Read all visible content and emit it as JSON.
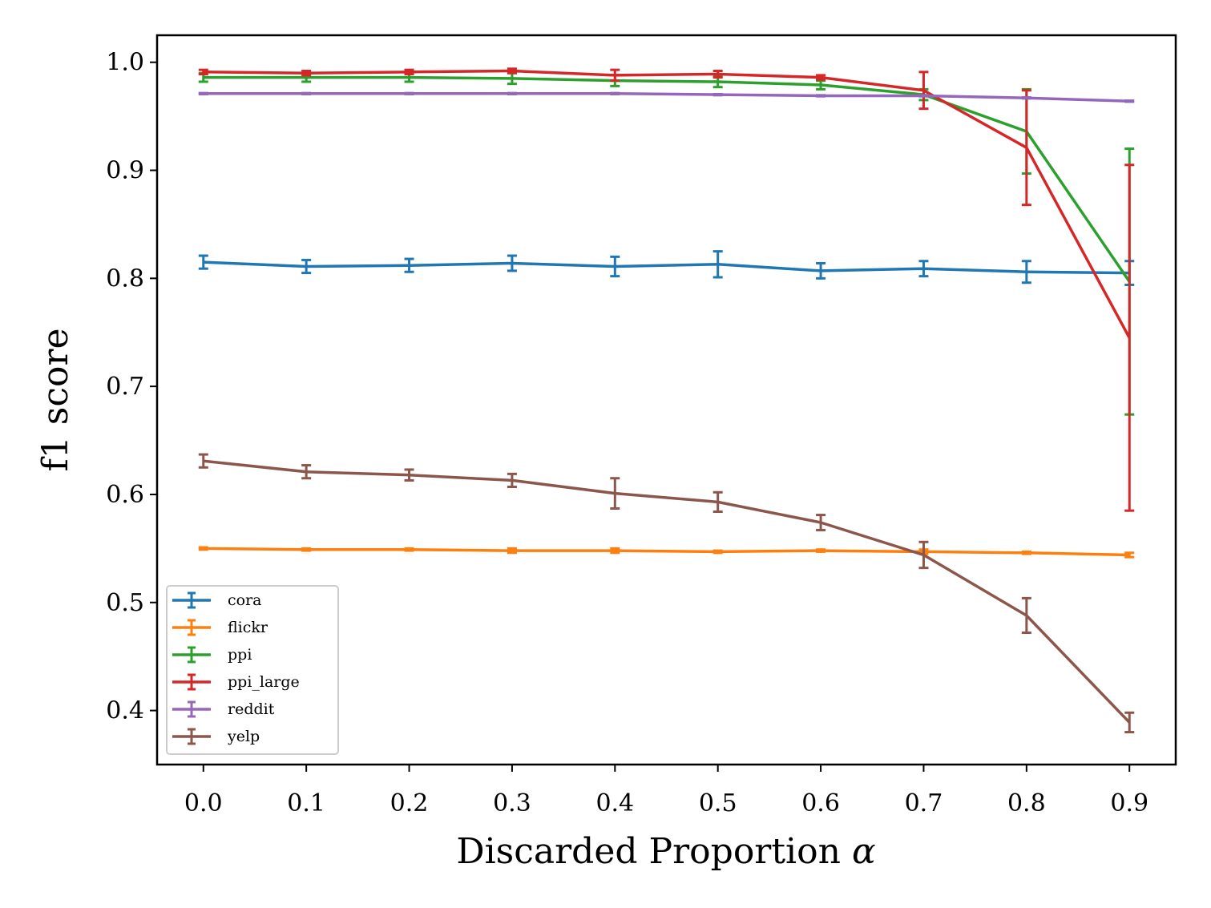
{
  "chart_data": {
    "type": "line",
    "title": "",
    "xlabel": "Discarded Proportion",
    "xlabel_symbol": "α",
    "ylabel": "f1 score",
    "x": [
      0.0,
      0.1,
      0.2,
      0.3,
      0.4,
      0.5,
      0.6,
      0.7,
      0.8,
      0.9
    ],
    "xlim": [
      -0.045,
      0.945
    ],
    "ylim": [
      0.35,
      1.025
    ],
    "xticks": [
      "0.0",
      "0.1",
      "0.2",
      "0.3",
      "0.4",
      "0.5",
      "0.6",
      "0.7",
      "0.8",
      "0.9"
    ],
    "yticks": [
      "0.4",
      "0.5",
      "0.6",
      "0.7",
      "0.8",
      "0.9",
      "1.0"
    ],
    "ytick_values": [
      0.4,
      0.5,
      0.6,
      0.7,
      0.8,
      0.9,
      1.0
    ],
    "grid": false,
    "legend_position": "lower-left",
    "error_bars": true,
    "series": [
      {
        "name": "cora",
        "color": "#1f77b4",
        "values": [
          0.815,
          0.811,
          0.812,
          0.814,
          0.811,
          0.813,
          0.807,
          0.809,
          0.806,
          0.805
        ],
        "errors": [
          0.006,
          0.006,
          0.006,
          0.007,
          0.009,
          0.012,
          0.007,
          0.007,
          0.01,
          0.011
        ]
      },
      {
        "name": "flickr",
        "color": "#ff7f0e",
        "values": [
          0.55,
          0.549,
          0.549,
          0.548,
          0.548,
          0.547,
          0.548,
          0.547,
          0.546,
          0.544
        ],
        "errors": [
          0.001,
          0.001,
          0.001,
          0.002,
          0.002,
          0.001,
          0.001,
          0.002,
          0.001,
          0.002
        ]
      },
      {
        "name": "ppi",
        "color": "#2ca02c",
        "values": [
          0.986,
          0.986,
          0.986,
          0.985,
          0.983,
          0.982,
          0.979,
          0.97,
          0.936,
          0.797
        ],
        "errors": [
          0.004,
          0.004,
          0.004,
          0.005,
          0.005,
          0.005,
          0.004,
          0.005,
          0.039,
          0.123
        ]
      },
      {
        "name": "ppi_large",
        "color": "#d62728",
        "values": [
          0.991,
          0.99,
          0.991,
          0.992,
          0.988,
          0.989,
          0.986,
          0.974,
          0.921,
          0.745
        ],
        "errors": [
          0.002,
          0.002,
          0.002,
          0.002,
          0.005,
          0.003,
          0.002,
          0.017,
          0.053,
          0.16
        ]
      },
      {
        "name": "reddit",
        "color": "#9467bd",
        "values": [
          0.971,
          0.971,
          0.971,
          0.971,
          0.971,
          0.97,
          0.969,
          0.969,
          0.967,
          0.964
        ],
        "errors": [
          0.0005,
          0.0005,
          0.0005,
          0.0005,
          0.0005,
          0.0005,
          0.0005,
          0.0005,
          0.0005,
          0.0005
        ]
      },
      {
        "name": "yelp",
        "color": "#8c564b",
        "values": [
          0.631,
          0.621,
          0.618,
          0.613,
          0.601,
          0.593,
          0.574,
          0.544,
          0.488,
          0.389
        ],
        "errors": [
          0.006,
          0.006,
          0.005,
          0.006,
          0.014,
          0.009,
          0.007,
          0.012,
          0.016,
          0.009
        ]
      }
    ]
  }
}
